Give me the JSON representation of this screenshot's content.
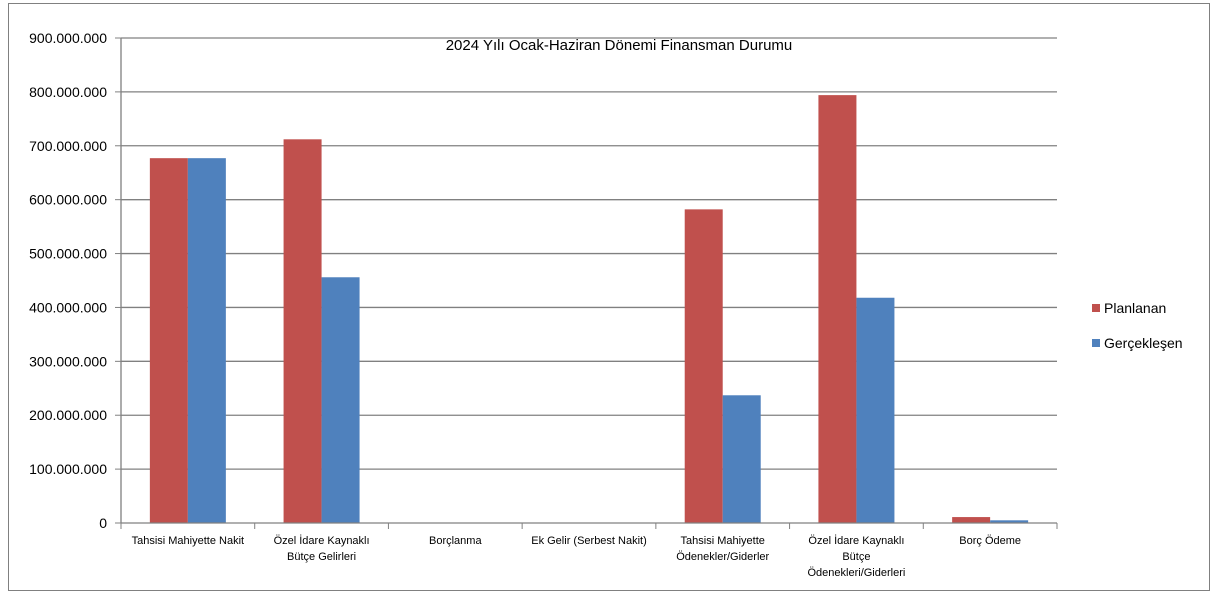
{
  "chart_data": {
    "type": "bar",
    "title": "2024 Yılı Ocak-Haziran Dönemi Finansman Durumu",
    "xlabel": "",
    "ylabel": "",
    "ylim": [
      0,
      900000000
    ],
    "yticks": [
      "0",
      "100.000.000",
      "200.000.000",
      "300.000.000",
      "400.000.000",
      "500.000.000",
      "600.000.000",
      "700.000.000",
      "800.000.000",
      "900.000.000"
    ],
    "grid": true,
    "legend_position": "right",
    "categories": [
      [
        "Tahsisi Mahiyette Nakit"
      ],
      [
        "Özel İdare Kaynaklı",
        "Bütçe Gelirleri"
      ],
      [
        "Borçlanma"
      ],
      [
        "Ek Gelir (Serbest Nakit)"
      ],
      [
        "Tahsisi Mahiyette",
        "Ödenekler/Giderler"
      ],
      [
        "Özel İdare Kaynaklı",
        "Bütçe",
        "Ödenekleri/Giderleri"
      ],
      [
        "Borç Ödeme"
      ]
    ],
    "series": [
      {
        "name": "Planlanan",
        "color": "#C0504D",
        "values": [
          677000000,
          712000000,
          0,
          0,
          582000000,
          794000000,
          11000000
        ]
      },
      {
        "name": "Gerçekleşen",
        "color": "#4F81BD",
        "values": [
          677000000,
          456000000,
          0,
          0,
          237000000,
          418000000,
          5000000
        ]
      }
    ]
  }
}
